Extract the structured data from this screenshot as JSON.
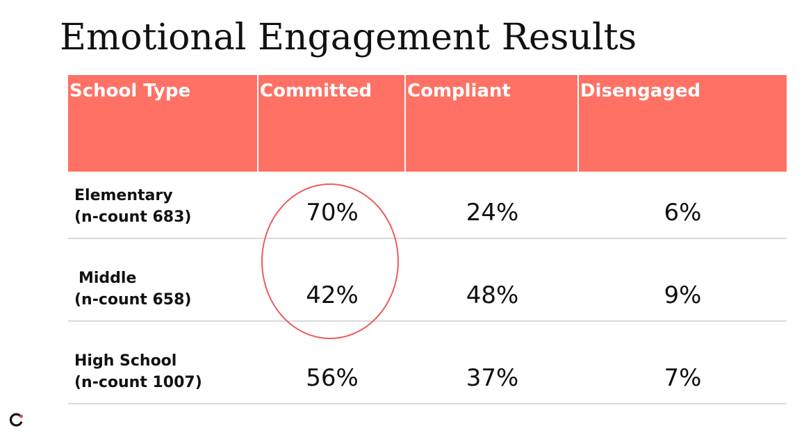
{
  "title": "Emotional Engagement Results",
  "table": {
    "headers": [
      "School Type",
      "Committed",
      "Compliant",
      "Disengaged"
    ],
    "rows": [
      {
        "label_line1": "Elementary",
        "label_line2": "(n-count 683)",
        "values": [
          "70%",
          "24%",
          "6%"
        ]
      },
      {
        "label_line1": "Middle",
        "label_line2": "(n-count 658)",
        "values": [
          "42%",
          "48%",
          "9%"
        ]
      },
      {
        "label_line1": "High School",
        "label_line2": "(n-count 1007)",
        "values": [
          "56%",
          "37%",
          "7%"
        ]
      }
    ]
  },
  "colors": {
    "header_bg": "#ff7165",
    "highlight_circle": "#ee5a5a",
    "row_divider": "#d9d9d9"
  },
  "icons": {
    "logo": "brand-logo-icon"
  }
}
